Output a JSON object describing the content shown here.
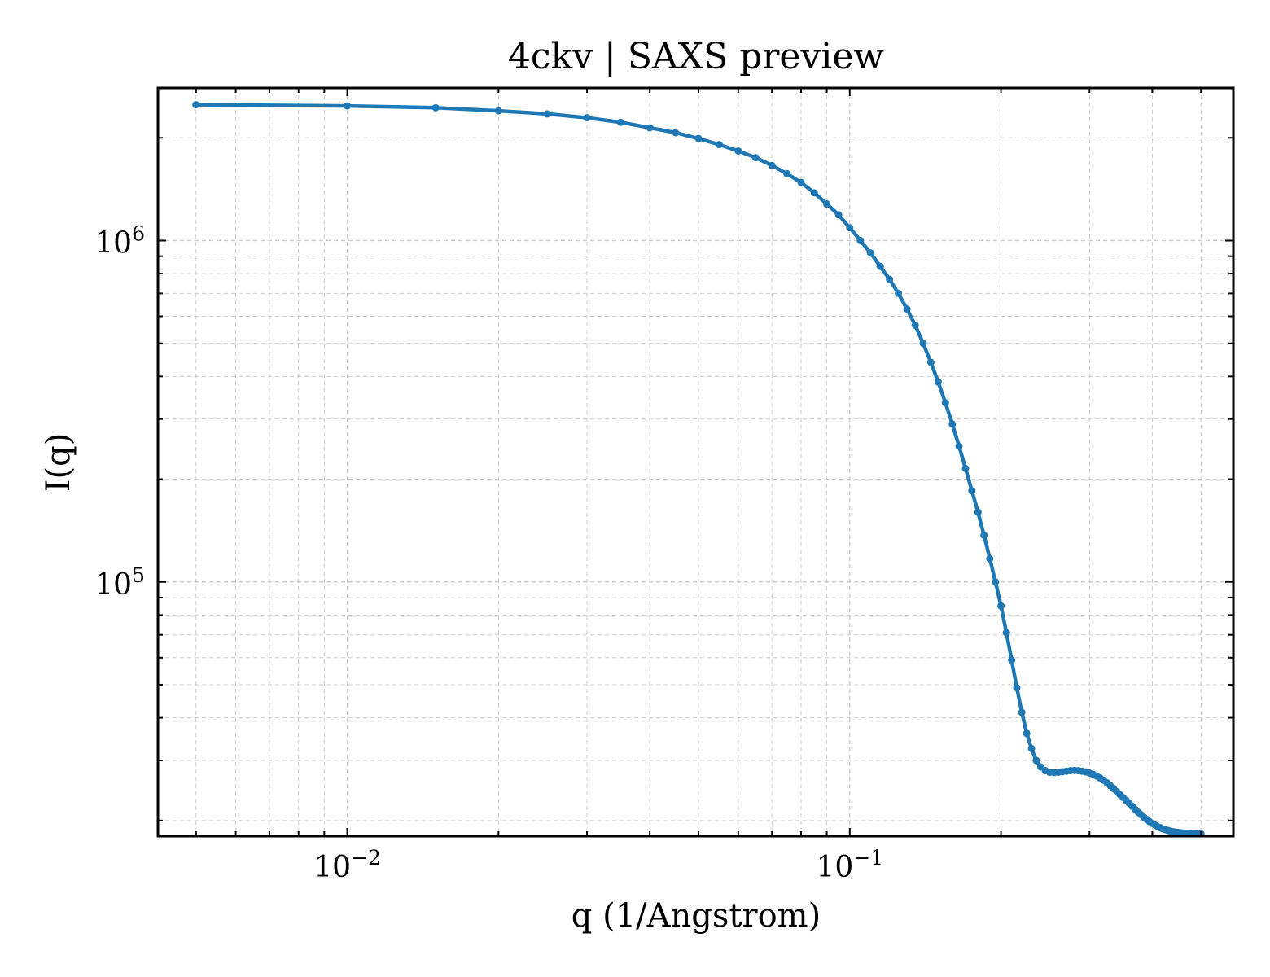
{
  "chart_data": {
    "type": "line",
    "title": "4ckv | SAXS preview",
    "xlabel": "q (1/Angstrom)",
    "ylabel": "I(q)",
    "x_scale": "log",
    "y_scale": "log",
    "xlim": [
      0.0042,
      0.58
    ],
    "ylim": [
      18000,
      2800000
    ],
    "grid": true,
    "line_color": "#1f77b4",
    "x_ticks": [
      {
        "value": 0.01,
        "base": "10",
        "exp": "−2"
      },
      {
        "value": 0.1,
        "base": "10",
        "exp": "−1"
      }
    ],
    "y_ticks": [
      {
        "value": 100000,
        "base": "10",
        "exp": "5"
      },
      {
        "value": 1000000,
        "base": "10",
        "exp": "6"
      }
    ],
    "series": [
      {
        "x": [
          0.005,
          0.01,
          0.015,
          0.02,
          0.025,
          0.03,
          0.035,
          0.04,
          0.045,
          0.05,
          0.055,
          0.06,
          0.065,
          0.07,
          0.075,
          0.08,
          0.085,
          0.09,
          0.095,
          0.1,
          0.105,
          0.11,
          0.115,
          0.12,
          0.125,
          0.13,
          0.135,
          0.14,
          0.145,
          0.15,
          0.155,
          0.16,
          0.165,
          0.17,
          0.175,
          0.18,
          0.185,
          0.19,
          0.195,
          0.2,
          0.205,
          0.21,
          0.215,
          0.22,
          0.225,
          0.23,
          0.235,
          0.24,
          0.245,
          0.25,
          0.255,
          0.26,
          0.265,
          0.27,
          0.275,
          0.28,
          0.285,
          0.29,
          0.295,
          0.3,
          0.305,
          0.31,
          0.315,
          0.32,
          0.325,
          0.33,
          0.335,
          0.34,
          0.345,
          0.35,
          0.355,
          0.36,
          0.365,
          0.37,
          0.375,
          0.38,
          0.385,
          0.39,
          0.395,
          0.4,
          0.405,
          0.41,
          0.415,
          0.42,
          0.425,
          0.43,
          0.435,
          0.44,
          0.445,
          0.45,
          0.455,
          0.46,
          0.465,
          0.47,
          0.475,
          0.48,
          0.485,
          0.49,
          0.495,
          0.5
        ],
        "y": [
          2500000,
          2480000,
          2450000,
          2400000,
          2350000,
          2290000,
          2220000,
          2140000,
          2070000,
          1990000,
          1910000,
          1830000,
          1750000,
          1660000,
          1570000,
          1480000,
          1380000,
          1280000,
          1190000,
          1090000,
          1000000,
          920000,
          840000,
          770000,
          700000,
          630000,
          565000,
          500000,
          440000,
          385000,
          335000,
          290000,
          250000,
          215000,
          185000,
          160000,
          137000,
          117000,
          100000,
          85000,
          71000,
          59000,
          49000,
          41500,
          36000,
          32500,
          30000,
          28700,
          28000,
          27700,
          27650,
          27700,
          27800,
          27900,
          28000,
          28050,
          28000,
          27900,
          27750,
          27550,
          27300,
          27000,
          26650,
          26250,
          25800,
          25300,
          24800,
          24300,
          23800,
          23350,
          22900,
          22450,
          22000,
          21550,
          21150,
          20800,
          20450,
          20150,
          19850,
          19600,
          19400,
          19200,
          19050,
          18900,
          18800,
          18700,
          18620,
          18550,
          18500,
          18450,
          18420,
          18390,
          18370,
          18350,
          18330,
          18320,
          18310,
          18300,
          18295,
          18290
        ]
      }
    ]
  }
}
